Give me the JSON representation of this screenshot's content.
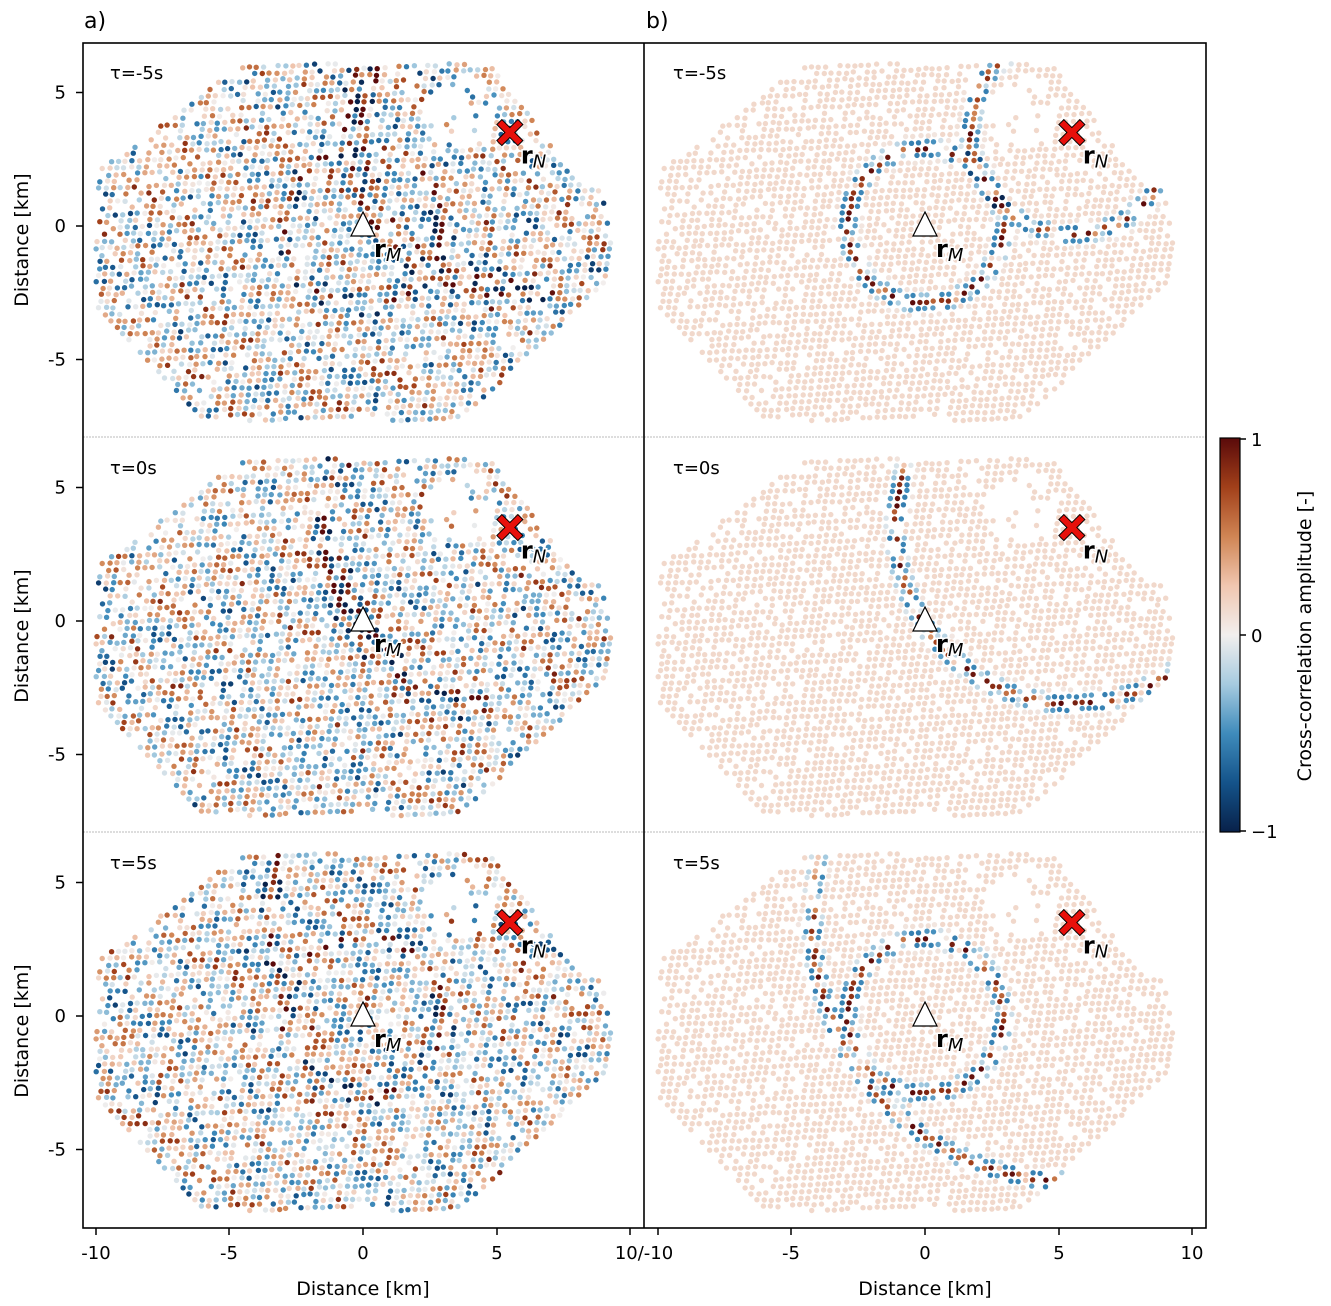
{
  "panel_labels": [
    "a)",
    "b)"
  ],
  "chart_data": {
    "type": "scatter",
    "description_free": true,
    "x_axis": {
      "label": "Distance [km]",
      "ticks_left": [
        "-10",
        "-5",
        "0",
        "5"
      ],
      "tick_shared": "10/-10",
      "ticks_right": [
        "-5",
        "0",
        "5",
        "10"
      ],
      "range": [
        -10.5,
        10.5
      ]
    },
    "y_axis": {
      "label": "Distance [km]",
      "ticks": [
        "5",
        "0",
        "-5"
      ],
      "tick_values": [
        5,
        0,
        -5
      ],
      "range": [
        -7.8,
        6.7
      ]
    },
    "lags": [
      "τ=-5s",
      "τ=0s",
      "τ=5s"
    ],
    "lag_values_s": [
      -5,
      0,
      5
    ],
    "receiver_M": {
      "label": "r",
      "subscript": "M",
      "x": 0,
      "y": 0
    },
    "source_N": {
      "label": "r",
      "subscript": "N",
      "x": 5.5,
      "y": 3.5
    },
    "colorbar": {
      "label": "Cross-correlation amplitude [-]",
      "ticks": [
        "1",
        "0",
        "−1"
      ],
      "range": [
        -1,
        1
      ],
      "colors": [
        "#08214a",
        "#14538a",
        "#3f8bbb",
        "#a6cbe0",
        "#f2efee",
        "#f0c6b0",
        "#d08554",
        "#a2401a",
        "#5a0a0a"
      ]
    },
    "marker_colors": {
      "source": "#e8100b",
      "receiver": "#ffffff"
    },
    "panels": [
      {
        "column": "a",
        "row": 0,
        "lag_s": -5,
        "kind": "noisy",
        "rings_around": [
          [
            0,
            0,
            3.0
          ]
        ],
        "arcs": [
          [
            5.5,
            3.5,
            5.5,
            [
              -230,
              -75
            ]
          ],
          [
            5.5,
            3.5,
            6.1,
            [
              -230,
              -75
            ]
          ]
        ]
      },
      {
        "column": "a",
        "row": 1,
        "lag_s": 0,
        "kind": "noisy",
        "arcs": [
          [
            5.5,
            3.5,
            6.5,
            [
              -245,
              -95
            ]
          ],
          [
            5.5,
            3.5,
            7.0,
            [
              -245,
              -95
            ]
          ]
        ]
      },
      {
        "column": "a",
        "row": 2,
        "lag_s": 5,
        "kind": "noisy",
        "rings_around": [
          [
            0,
            0,
            3.0
          ]
        ],
        "arcs": [
          [
            5.5,
            3.5,
            9.0,
            [
              -210,
              -150
            ]
          ]
        ]
      },
      {
        "column": "b",
        "row": 0,
        "lag_s": -5,
        "kind": "clean",
        "rings": [
          [
            0,
            0,
            2.9
          ],
          [
            5.5,
            3.5,
            3.8
          ]
        ]
      },
      {
        "column": "b",
        "row": 1,
        "lag_s": 0,
        "kind": "clean",
        "rings": [
          [
            5.5,
            3.5,
            6.6
          ]
        ]
      },
      {
        "column": "b",
        "row": 2,
        "lag_s": 5,
        "kind": "clean",
        "rings": [
          [
            0,
            0,
            2.9
          ],
          [
            5.5,
            3.5,
            9.7
          ]
        ]
      }
    ]
  }
}
